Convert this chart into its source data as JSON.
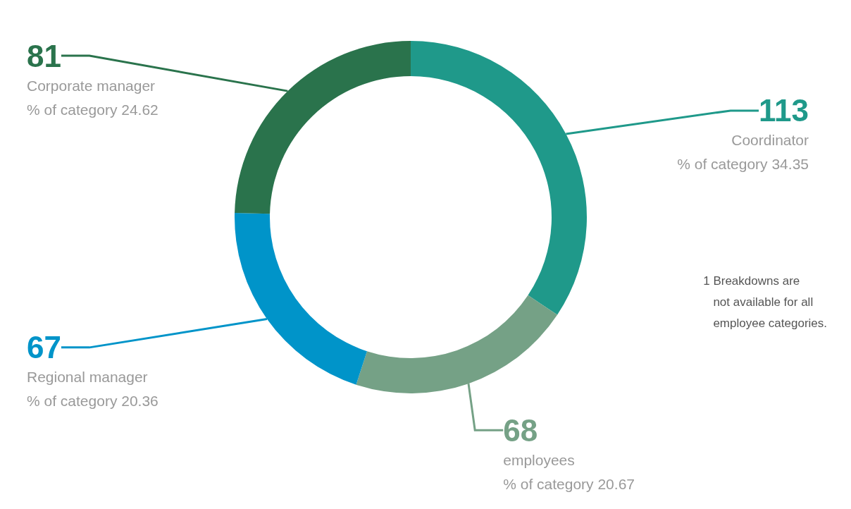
{
  "chart_data": {
    "type": "donut",
    "categories": [
      "Coordinator",
      "employees",
      "Regional manager",
      "Corporate manager"
    ],
    "values": [
      113,
      68,
      67,
      81
    ],
    "colors": [
      "#1f998a",
      "#75a186",
      "#0094c9",
      "#2a734c"
    ],
    "value_labels": [
      "113",
      "68",
      "67",
      "81"
    ],
    "annotations": [
      "% of category 34.35",
      "% of category 20.67",
      "% of category 20.36",
      "% of category 24.62",
      "1 Breakdowns are\n   not available for all\n   employee categories."
    ],
    "legend": false
  }
}
